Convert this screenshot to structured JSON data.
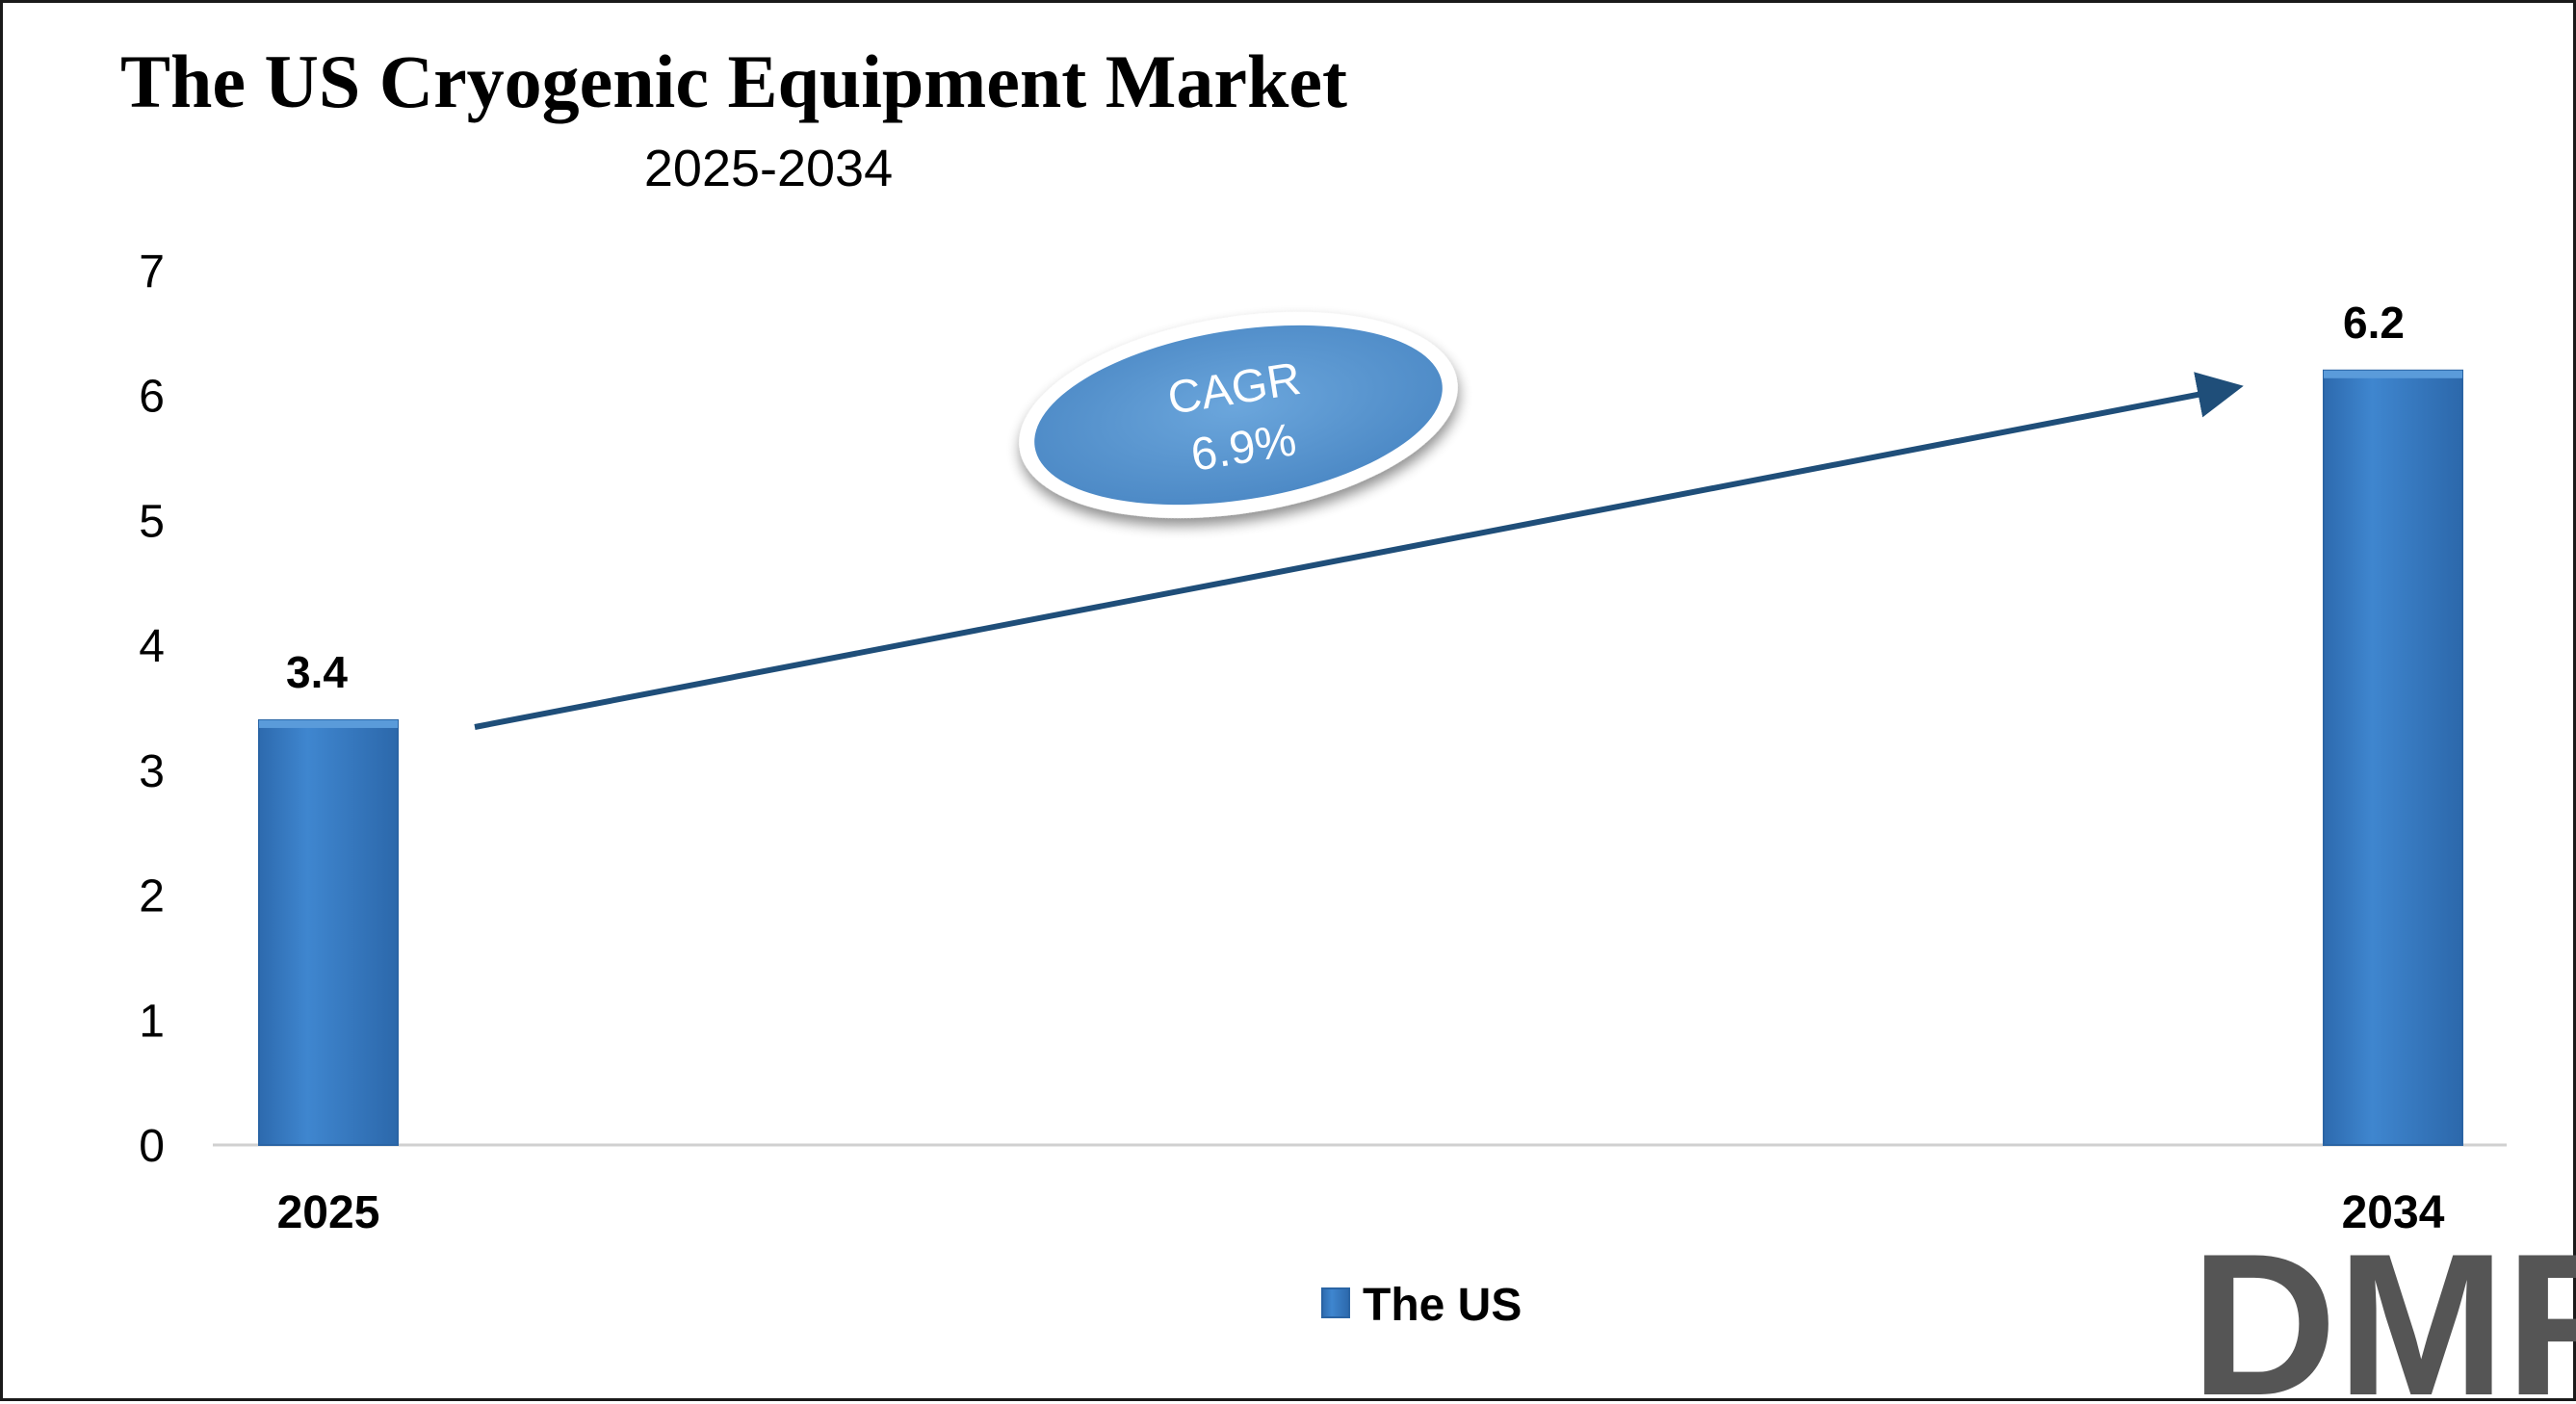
{
  "chart_data": {
    "type": "bar",
    "title": "The US Cryogenic Equipment Market",
    "subtitle": "2025-2034",
    "categories": [
      "2025",
      "2034"
    ],
    "series": [
      {
        "name": "The US",
        "values": [
          3.4,
          6.2
        ],
        "color": "#3A7DC4"
      }
    ],
    "data_labels": [
      "3.4",
      "6.2"
    ],
    "ylim": [
      0,
      7
    ],
    "y_ticks": [
      "0",
      "1",
      "2",
      "3",
      "4",
      "5",
      "6",
      "7"
    ],
    "grid": false,
    "legend": {
      "position": "bottom",
      "entries": [
        "The US"
      ]
    },
    "annotations": {
      "cagr_label": "CAGR",
      "cagr_value": "6.9%",
      "arrow": "trend arrow from 2025 bar to 2034 bar"
    }
  },
  "branding": {
    "logo_text": "DMR",
    "logo_colors": {
      "primary": "#555555",
      "accent": "#E03A3A"
    }
  },
  "colors": {
    "bar": "#3A7DC4",
    "bar_dark": "#2A64A4",
    "arrow": "#1F4E79",
    "ellipse": "#5B9AD5"
  }
}
